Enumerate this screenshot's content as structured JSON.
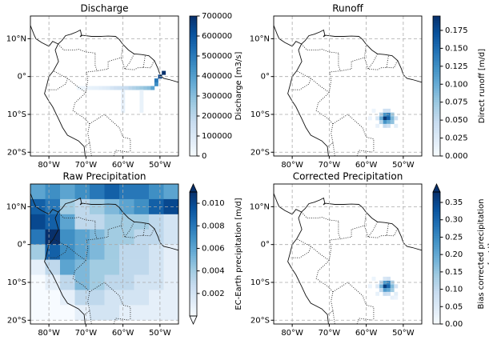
{
  "chart_data": [
    {
      "type": "map",
      "title": "Discharge",
      "colormap": "Blues",
      "grid": true,
      "extend": "neither",
      "colorbar_label": [
        "Discharge [m3/s]"
      ],
      "clim": [
        0,
        700000
      ],
      "cticks": [
        0,
        100000,
        200000,
        300000,
        400000,
        500000,
        600000,
        700000
      ],
      "xlim": [
        -85,
        -45
      ],
      "ylim": [
        -21,
        16
      ],
      "xticks": [
        {
          "value": -80,
          "label": "80°W"
        },
        {
          "value": -70,
          "label": "70°W"
        },
        {
          "value": -60,
          "label": "60°W"
        },
        {
          "value": -50,
          "label": "50°W"
        }
      ],
      "yticks": [
        {
          "value": 10,
          "label": "10°N"
        },
        {
          "value": 0,
          "label": "0°"
        },
        {
          "value": -10,
          "label": "10°S"
        },
        {
          "value": -20,
          "label": "20°S"
        }
      ],
      "lon": [
        -72,
        -71,
        -70,
        -69,
        -68,
        -67,
        -66,
        -65,
        -64,
        -63,
        -62,
        -61,
        -60,
        -59,
        -58,
        -57,
        -56,
        -55,
        -54,
        -53,
        -52,
        -51,
        -51,
        -50,
        -49,
        -60,
        -60,
        -60,
        -60,
        -60,
        -60,
        -55,
        -55,
        -55,
        -55,
        -55,
        -55
      ],
      "lat": [
        -3,
        -3,
        -3,
        -3,
        -3,
        -3,
        -3,
        -3,
        -3,
        -3,
        -3,
        -3,
        -3,
        -3,
        -3,
        -3,
        -3,
        -3,
        -3,
        -3,
        -3,
        -2,
        -1,
        0,
        1,
        -4,
        -5,
        -6,
        -7,
        -8,
        -9,
        -4,
        -5,
        -6,
        -7,
        -8,
        -9
      ],
      "values": [
        30000,
        35000,
        40000,
        50000,
        55000,
        60000,
        70000,
        80000,
        90000,
        120000,
        140000,
        150000,
        160000,
        170000,
        200000,
        220000,
        240000,
        260000,
        280000,
        300000,
        380000,
        450000,
        500000,
        650000,
        700000,
        60000,
        60000,
        60000,
        60000,
        60000,
        60000,
        50000,
        50000,
        50000,
        50000,
        50000,
        50000
      ]
    },
    {
      "type": "map",
      "title": "Runoff",
      "colormap": "Blues",
      "grid": true,
      "extend": "neither",
      "colorbar_label": [
        "Direct runoff [m/d]"
      ],
      "clim": [
        0,
        0.195
      ],
      "cticks": [
        {
          "value": 0,
          "label": "0.000"
        },
        {
          "value": 0.025,
          "label": "0.025"
        },
        {
          "value": 0.05,
          "label": "0.050"
        },
        {
          "value": 0.075,
          "label": "0.075"
        },
        {
          "value": 0.1,
          "label": "0.100"
        },
        {
          "value": 0.125,
          "label": "0.125"
        },
        {
          "value": 0.15,
          "label": "0.150"
        },
        {
          "value": 0.175,
          "label": "0.175"
        }
      ],
      "xlim": [
        -85,
        -45
      ],
      "ylim": [
        -21,
        16
      ],
      "xticks": [
        {
          "value": -80,
          "label": "80°W"
        },
        {
          "value": -70,
          "label": "70°W"
        },
        {
          "value": -60,
          "label": "60°W"
        },
        {
          "value": -50,
          "label": "50°W"
        }
      ],
      "yticks": [
        {
          "value": 10,
          "label": "10°N"
        },
        {
          "value": 0,
          "label": "0°"
        },
        {
          "value": -10,
          "label": "10°S"
        },
        {
          "value": -20,
          "label": "20°S"
        }
      ],
      "lon": [
        -55,
        -54,
        -55,
        -54,
        -56,
        -55,
        -54,
        -53,
        -56,
        -53,
        -56,
        -53,
        -55,
        -54,
        -57,
        -55,
        -54,
        -52,
        -58,
        -59,
        -57,
        -52
      ],
      "lat": [
        -11,
        -11,
        -10,
        -10,
        -11,
        -12,
        -12,
        -11,
        -10,
        -10,
        -12,
        -12,
        -13,
        -13,
        -11,
        -9,
        -9,
        -11,
        -9,
        -11,
        -13,
        -13
      ],
      "values": [
        0.19,
        0.16,
        0.12,
        0.14,
        0.1,
        0.12,
        0.1,
        0.09,
        0.06,
        0.07,
        0.06,
        0.08,
        0.05,
        0.04,
        0.03,
        0.04,
        0.04,
        0.04,
        0.01,
        0.01,
        0.015,
        0.02
      ]
    },
    {
      "type": "map",
      "title": "Raw Precipitation",
      "colormap": "Blues",
      "grid": true,
      "extend": "both",
      "colorbar_label": [
        "EC-Earth precipitation [m/d]"
      ],
      "clim": [
        0,
        0.011
      ],
      "cticks": [
        0.002,
        0.004,
        0.006,
        0.008,
        {
          "value": 0.01,
          "label": "0.010"
        }
      ],
      "xlim": [
        -85,
        -45
      ],
      "ylim": [
        -21,
        16
      ],
      "xticks": [
        {
          "value": -80,
          "label": "80°W"
        },
        {
          "value": -70,
          "label": "70°W"
        },
        {
          "value": -60,
          "label": "60°W"
        },
        {
          "value": -50,
          "label": "50°W"
        }
      ],
      "yticks": [
        {
          "value": 10,
          "label": "10°N"
        },
        {
          "value": 0,
          "label": "0°"
        },
        {
          "value": -10,
          "label": "10°S"
        },
        {
          "value": -20,
          "label": "20°S"
        }
      ],
      "lon": [
        -83,
        -79,
        -75,
        -71,
        -67,
        -63,
        -59,
        -55,
        -51,
        -47
      ],
      "lat": [
        14,
        10,
        6,
        2,
        -2,
        -6,
        -10,
        -14,
        -18
      ],
      "values": [
        [
          0.006,
          0.007,
          0.006,
          0.007,
          0.008,
          0.009,
          0.008,
          0.008,
          0.007,
          0.006
        ],
        [
          0.009,
          0.008,
          0.004,
          0.003,
          0.004,
          0.005,
          0.006,
          0.007,
          0.009,
          0.01
        ],
        [
          0.01,
          0.009,
          0.006,
          0.003,
          0.003,
          0.004,
          0.004,
          0.004,
          0.003,
          0.002
        ],
        [
          0.008,
          0.011,
          0.007,
          0.006,
          0.005,
          0.004,
          0.004,
          0.003,
          0.003,
          0.002
        ],
        [
          0.004,
          0.009,
          0.007,
          0.006,
          0.005,
          0.004,
          0.003,
          0.003,
          0.002,
          0.001
        ],
        [
          0.001,
          0.003,
          0.006,
          0.005,
          0.004,
          0.004,
          0.003,
          0.003,
          0.002,
          0.001
        ],
        [
          0,
          0.001,
          0.003,
          0.005,
          0.004,
          0.003,
          0.003,
          0.002,
          0.002,
          0.001
        ],
        [
          0,
          0,
          0.001,
          0.003,
          0.003,
          0.002,
          0.002,
          0.002,
          0.001,
          0.001
        ],
        [
          0,
          0,
          0,
          0.001,
          0.002,
          0.002,
          0.001,
          0.001,
          0.001,
          0.001
        ]
      ]
    },
    {
      "type": "map",
      "title": "Corrected Precipitation",
      "colormap": "Blues",
      "grid": true,
      "extend": "max",
      "colorbar_label": [
        "Bias corrected precipitation",
        "[m/d]"
      ],
      "clim": [
        0,
        0.38
      ],
      "cticks": [
        {
          "value": 0,
          "label": "0.00"
        },
        {
          "value": 0.05,
          "label": "0.05"
        },
        {
          "value": 0.1,
          "label": "0.10"
        },
        {
          "value": 0.15,
          "label": "0.15"
        },
        {
          "value": 0.2,
          "label": "0.20"
        },
        {
          "value": 0.25,
          "label": "0.25"
        },
        {
          "value": 0.3,
          "label": "0.30"
        },
        {
          "value": 0.35,
          "label": "0.35"
        }
      ],
      "xlim": [
        -85,
        -45
      ],
      "ylim": [
        -21,
        16
      ],
      "xticks": [
        {
          "value": -80,
          "label": "80°W"
        },
        {
          "value": -70,
          "label": "70°W"
        },
        {
          "value": -60,
          "label": "60°W"
        },
        {
          "value": -50,
          "label": "50°W"
        }
      ],
      "yticks": [
        {
          "value": 10,
          "label": "10°N"
        },
        {
          "value": 0,
          "label": "0°"
        },
        {
          "value": -10,
          "label": "10°S"
        },
        {
          "value": -20,
          "label": "20°S"
        }
      ],
      "lon": [
        -55,
        -54,
        -55,
        -54,
        -56,
        -55,
        -54,
        -53,
        -56,
        -53,
        -56,
        -53,
        -55,
        -54,
        -57,
        -55,
        -54,
        -52,
        -58,
        -59,
        -57,
        -52,
        -53,
        -52
      ],
      "lat": [
        -11,
        -11,
        -10,
        -10,
        -11,
        -12,
        -12,
        -11,
        -10,
        -10,
        -12,
        -12,
        -13,
        -13,
        -11,
        -9,
        -9,
        -11,
        -9,
        -11,
        -13,
        -13,
        -14,
        -14
      ],
      "values": [
        0.36,
        0.3,
        0.22,
        0.26,
        0.18,
        0.22,
        0.2,
        0.17,
        0.1,
        0.12,
        0.1,
        0.14,
        0.09,
        0.08,
        0.05,
        0.06,
        0.07,
        0.07,
        0.02,
        0.02,
        0.03,
        0.04,
        0.03,
        0.02
      ]
    }
  ]
}
